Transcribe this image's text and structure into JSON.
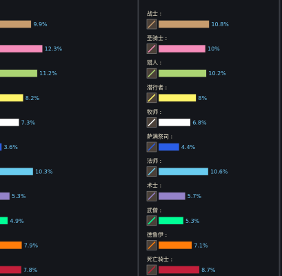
{
  "chart_data": [
    {
      "type": "bar",
      "categories": [
        null,
        null,
        null,
        null,
        null,
        null,
        null,
        null,
        null,
        null,
        null
      ],
      "values": [
        9.9,
        12.3,
        11.2,
        8.2,
        7.3,
        3.6,
        10.3,
        5.3,
        4.9,
        7.9,
        7.8
      ],
      "value_labels": [
        "9.9%",
        "12.3%",
        "11.2%",
        "8.2%",
        "7.3%",
        "3.6%",
        "10.3%",
        "5.3%",
        "4.9%",
        "7.9%",
        "7.8%"
      ],
      "colors": [
        "#c79c6e",
        "#f58cba",
        "#abd473",
        "#fff569",
        "#ffffff",
        "#2a5ee8",
        "#69ccf0",
        "#9482c9",
        "#00ff96",
        "#ff7d0a",
        "#c41f3b"
      ]
    },
    {
      "type": "bar",
      "categories": [
        "战士 :",
        "圣骑士 :",
        "猎人 :",
        "潜行者 :",
        "牧师 :",
        "萨满祭司 :",
        "法师 :",
        "术士 :",
        "武僧 :",
        "德鲁伊 :",
        "死亡骑士 :"
      ],
      "values": [
        10.8,
        10,
        10.2,
        8,
        6.8,
        4.4,
        10.6,
        5.7,
        5.3,
        7.1,
        8.7
      ],
      "value_labels": [
        "10.8%",
        "10%",
        "10.2%",
        "8%",
        "6.8%",
        "4.4%",
        "10.6%",
        "5.7%",
        "5.3%",
        "7.1%",
        "8.7%"
      ],
      "colors": [
        "#c79c6e",
        "#f58cba",
        "#abd473",
        "#fff569",
        "#ffffff",
        "#2a5ee8",
        "#69ccf0",
        "#9482c9",
        "#00ff96",
        "#ff7d0a",
        "#c41f3b"
      ]
    }
  ]
}
